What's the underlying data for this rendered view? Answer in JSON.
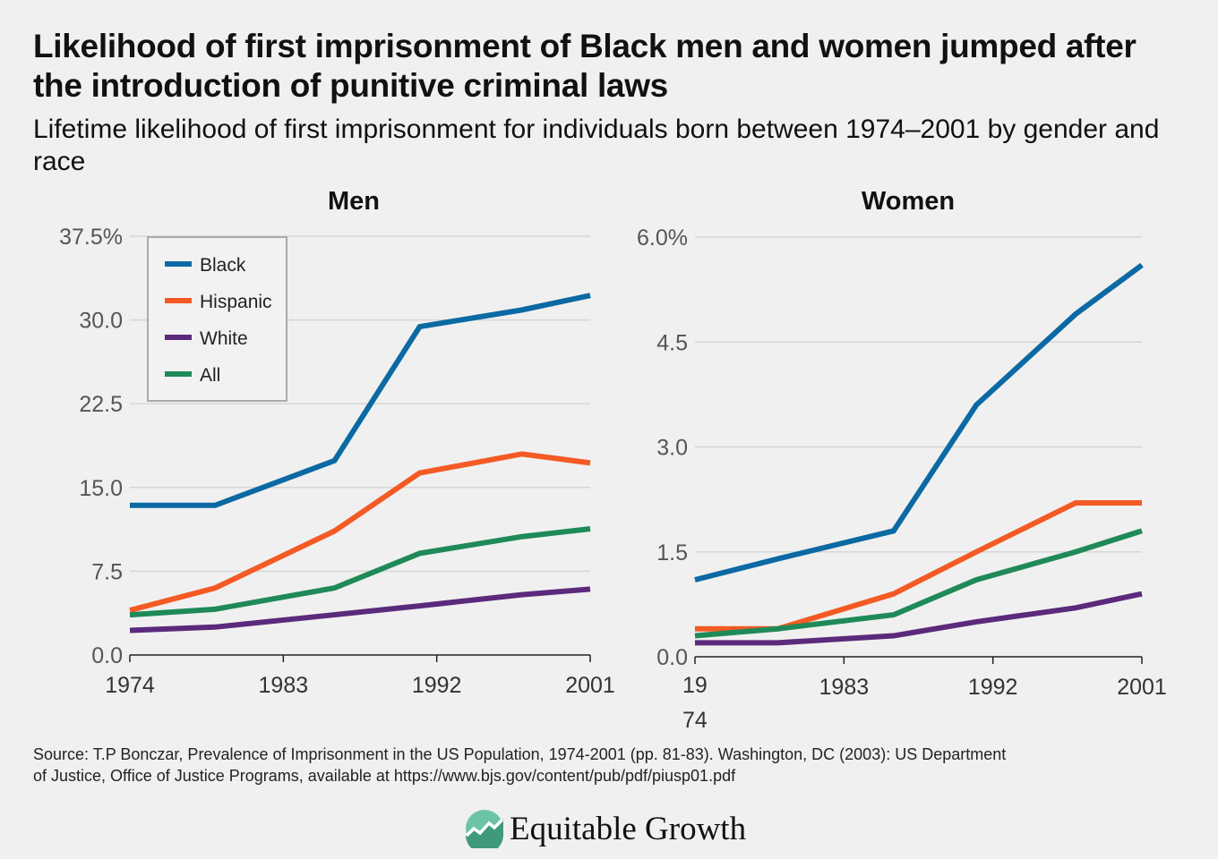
{
  "title": "Likelihood of first imprisonment of Black men and women jumped after the introduction of punitive criminal laws",
  "subtitle": "Lifetime likelihood of first imprisonment for individuals born between 1974–2001 by gender and race",
  "source": "Source: T.P Bonczar, Prevalence of Imprisonment in the US Population, 1974-2001 (pp. 81-83). Washington, DC (2003): US Department of Justice, Office of Justice Programs, available at https://www.bjs.gov/content/pub/pdf/piusp01.pdf",
  "logo_text": "Equitable Growth",
  "colors": {
    "Black": "#0b69a3",
    "Hispanic": "#f45a24",
    "White": "#5b2a7c",
    "All": "#1f8a58",
    "background": "#f0f0f0"
  },
  "chart_data": [
    {
      "type": "line",
      "title": "Men",
      "x": [
        1974,
        1979,
        1986,
        1991,
        1997,
        2001
      ],
      "xticks": [
        "1974",
        "1983",
        "1992",
        "2001"
      ],
      "xlim": [
        1974,
        2001
      ],
      "ylim": [
        0,
        37.5
      ],
      "yticks": [
        "0.0",
        "7.5",
        "15.0",
        "22.5",
        "30.0",
        "37.5%"
      ],
      "grid": true,
      "legend": "top-left",
      "series": [
        {
          "name": "Black",
          "values": [
            13.4,
            13.4,
            17.4,
            29.4,
            30.9,
            32.2
          ]
        },
        {
          "name": "Hispanic",
          "values": [
            4.0,
            6.0,
            11.1,
            16.3,
            18.0,
            17.2
          ]
        },
        {
          "name": "White",
          "values": [
            2.2,
            2.5,
            3.6,
            4.4,
            5.4,
            5.9
          ]
        },
        {
          "name": "All",
          "values": [
            3.6,
            4.1,
            6.0,
            9.1,
            10.6,
            11.3
          ]
        }
      ]
    },
    {
      "type": "line",
      "title": "Women",
      "x": [
        1974,
        1979,
        1986,
        1991,
        1997,
        2001
      ],
      "xticks": [
        "1974",
        "1983",
        "1992",
        "2001"
      ],
      "xlim": [
        1974,
        2001
      ],
      "ylim": [
        0,
        6.0
      ],
      "yticks": [
        "0.0",
        "1.5",
        "3.0",
        "4.5",
        "6.0%"
      ],
      "grid": true,
      "series": [
        {
          "name": "Black",
          "values": [
            1.1,
            1.4,
            1.8,
            3.6,
            4.9,
            5.6
          ]
        },
        {
          "name": "Hispanic",
          "values": [
            0.4,
            0.4,
            0.9,
            1.5,
            2.2,
            2.2
          ]
        },
        {
          "name": "White",
          "values": [
            0.2,
            0.2,
            0.3,
            0.5,
            0.7,
            0.9
          ]
        },
        {
          "name": "All",
          "values": [
            0.3,
            0.4,
            0.6,
            1.1,
            1.5,
            1.8
          ]
        }
      ]
    }
  ]
}
